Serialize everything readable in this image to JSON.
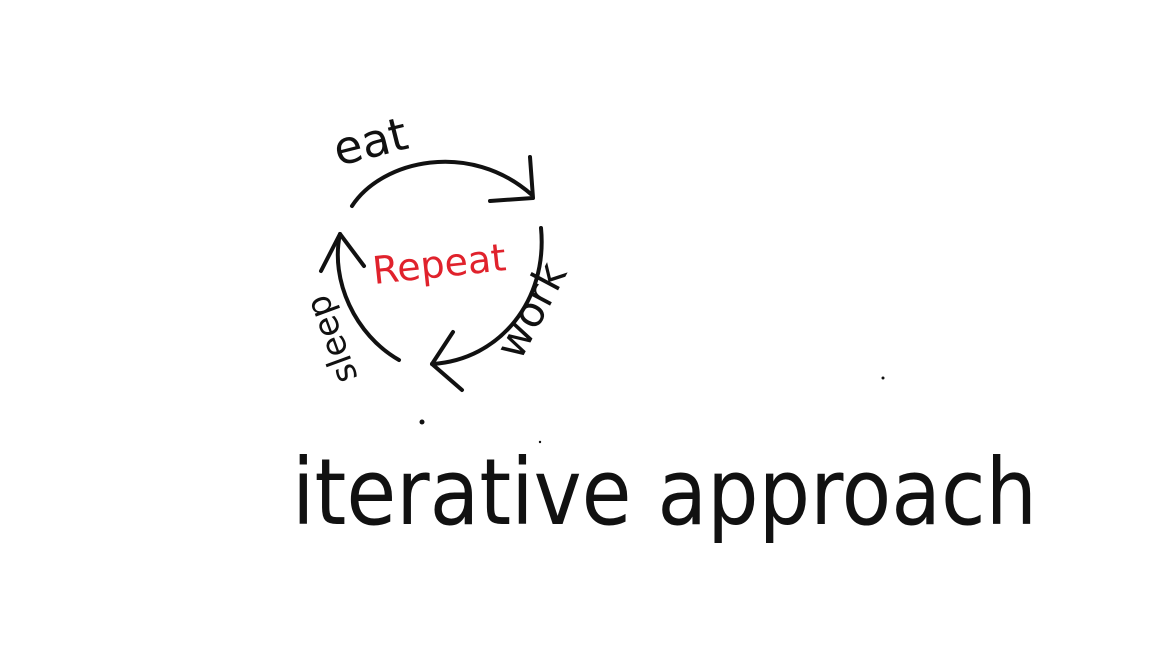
{
  "diagram": {
    "center_label": "Repeat",
    "steps": [
      {
        "label": "eat"
      },
      {
        "label": "work"
      },
      {
        "label": "sleep"
      }
    ],
    "caption": "iterative approach",
    "colors": {
      "ink": "#111111",
      "accent": "#e0222c",
      "background": "#ffffff"
    }
  }
}
